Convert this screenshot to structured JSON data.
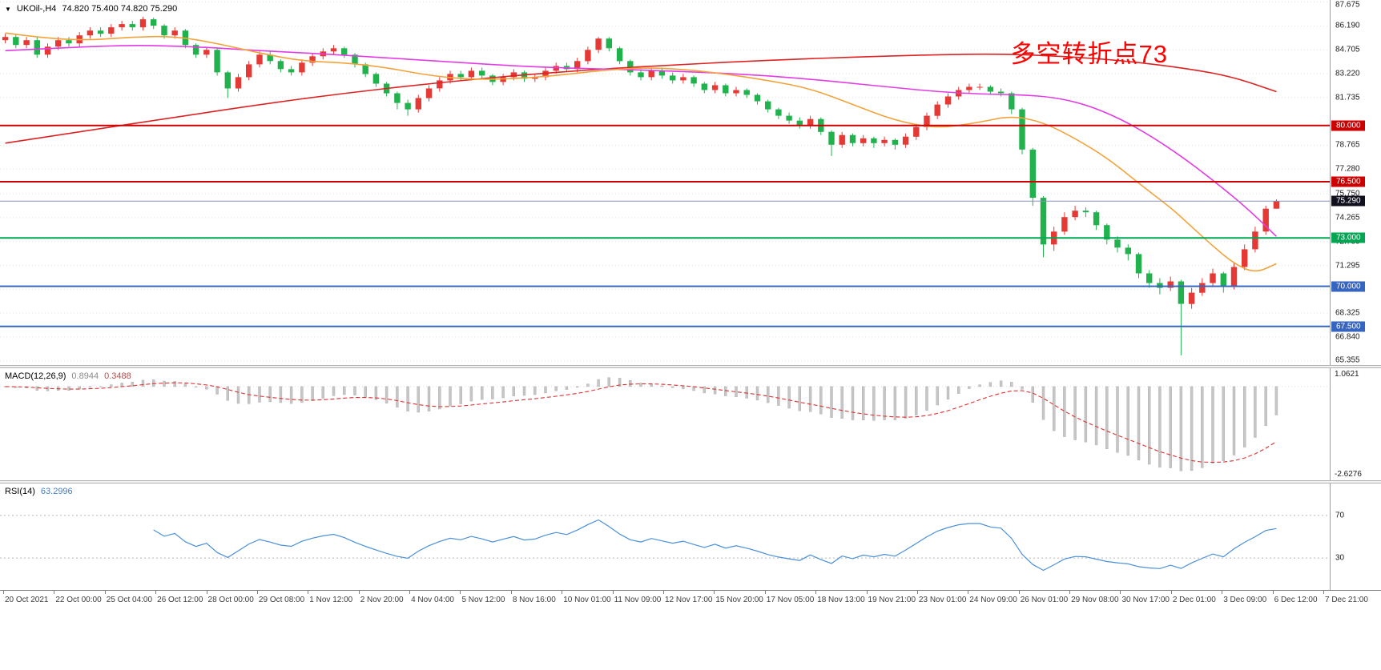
{
  "header": {
    "dropdown_icon": "▼",
    "symbol": "UKOil-,H4",
    "ohlc": "74.820 75.400 74.820 75.290"
  },
  "annotation": {
    "text": "多空转折点73",
    "color": "#ff0000"
  },
  "price_axis": {
    "ticks": [
      "87.675",
      "86.190",
      "84.705",
      "83.220",
      "81.735",
      "78.765",
      "77.280",
      "75.750",
      "74.265",
      "72.780",
      "71.295",
      "69.810",
      "68.325",
      "66.840",
      "65.355"
    ],
    "levels": [
      {
        "label": "80.000",
        "bg": "#cc0000"
      },
      {
        "label": "76.500",
        "bg": "#cc0000"
      },
      {
        "label": "75.290",
        "bg": "#10101e"
      },
      {
        "label": "73.000",
        "bg": "#00a651"
      },
      {
        "label": "70.000",
        "bg": "#3565c0"
      },
      {
        "label": "67.500",
        "bg": "#3565c0"
      }
    ]
  },
  "macd": {
    "label": "MACD(12,26,9)",
    "value_main": "0.8944",
    "value_signal": "0.3488",
    "axis_max": "1.0621",
    "axis_min": "-2.6276",
    "fast": 12,
    "slow": 26,
    "signal_period": 9,
    "histogram_color": "#c6c6c6",
    "signal_color": "#e03131"
  },
  "rsi": {
    "label": "RSI(14)",
    "value": "63.2996",
    "period": 14,
    "levels": [
      "70",
      "30"
    ],
    "line_color": "#4a90d9"
  },
  "time_axis": [
    "20 Oct 2021",
    "22 Oct 00:00",
    "25 Oct 04:00",
    "26 Oct 12:00",
    "28 Oct 00:00",
    "29 Oct 08:00",
    "1 Nov 12:00",
    "2 Nov 20:00",
    "4 Nov 04:00",
    "5 Nov 12:00",
    "8 Nov 16:00",
    "10 Nov 01:00",
    "11 Nov 09:00",
    "12 Nov 17:00",
    "15 Nov 20:00",
    "17 Nov 05:00",
    "18 Nov 13:00",
    "19 Nov 21:00",
    "23 Nov 01:00",
    "24 Nov 09:00",
    "26 Nov 01:00",
    "29 Nov 08:00",
    "30 Nov 17:00",
    "2 Dec 01:00",
    "3 Dec 09:00",
    "6 Dec 12:00",
    "7 Dec 21:00"
  ],
  "chart_data": {
    "type": "candlestick",
    "symbol": "UKOil-",
    "timeframe": "H4",
    "bull_color": "#e53935",
    "bear_color": "#21b24e",
    "y_range": [
      65.1,
      87.8
    ],
    "current_price": 75.29,
    "current_price_line_color": "#8896b8",
    "hlines": [
      {
        "price": 80.0,
        "color": "#cc0000"
      },
      {
        "price": 76.5,
        "color": "#cc0000"
      },
      {
        "price": 73.0,
        "color": "#00a651"
      },
      {
        "price": 70.0,
        "color": "#3565c0"
      },
      {
        "price": 67.5,
        "color": "#3565c0"
      }
    ],
    "candles": [
      [
        85.3,
        85.7,
        85.1,
        85.5
      ],
      [
        85.5,
        85.7,
        84.8,
        85.0
      ],
      [
        85.0,
        85.5,
        84.8,
        85.3
      ],
      [
        85.3,
        85.5,
        84.2,
        84.4
      ],
      [
        84.4,
        85.1,
        84.2,
        84.9
      ],
      [
        84.9,
        85.5,
        84.7,
        85.3
      ],
      [
        85.3,
        85.5,
        84.9,
        85.1
      ],
      [
        85.1,
        85.8,
        84.9,
        85.6
      ],
      [
        85.6,
        86.1,
        85.4,
        85.9
      ],
      [
        85.9,
        86.1,
        85.5,
        85.7
      ],
      [
        85.7,
        86.3,
        85.5,
        86.1
      ],
      [
        86.1,
        86.5,
        85.9,
        86.3
      ],
      [
        86.3,
        86.5,
        85.9,
        86.1
      ],
      [
        86.1,
        86.75,
        85.9,
        86.6
      ],
      [
        86.6,
        86.7,
        86.0,
        86.2
      ],
      [
        86.2,
        86.3,
        85.4,
        85.6
      ],
      [
        85.6,
        86.1,
        85.4,
        85.9
      ],
      [
        85.9,
        86.0,
        84.8,
        85.0
      ],
      [
        85.0,
        85.1,
        84.2,
        84.4
      ],
      [
        84.4,
        84.9,
        84.2,
        84.7
      ],
      [
        84.7,
        84.8,
        83.1,
        83.3
      ],
      [
        83.3,
        83.4,
        81.7,
        82.3
      ],
      [
        82.3,
        83.2,
        82.1,
        83.0
      ],
      [
        83.0,
        84.0,
        82.8,
        83.8
      ],
      [
        83.8,
        84.6,
        83.6,
        84.4
      ],
      [
        84.4,
        84.6,
        83.8,
        84.0
      ],
      [
        84.0,
        84.1,
        83.3,
        83.5
      ],
      [
        83.5,
        83.7,
        83.1,
        83.3
      ],
      [
        83.3,
        84.1,
        83.1,
        83.9
      ],
      [
        83.9,
        84.5,
        83.7,
        84.3
      ],
      [
        84.3,
        84.8,
        84.1,
        84.6
      ],
      [
        84.6,
        85.0,
        84.4,
        84.8
      ],
      [
        84.8,
        84.9,
        84.2,
        84.4
      ],
      [
        84.4,
        84.5,
        83.6,
        83.8
      ],
      [
        83.8,
        83.9,
        83.0,
        83.2
      ],
      [
        83.2,
        83.3,
        82.4,
        82.6
      ],
      [
        82.6,
        82.7,
        81.8,
        82.0
      ],
      [
        82.0,
        82.1,
        81.0,
        81.4
      ],
      [
        81.4,
        81.6,
        80.6,
        81.0
      ],
      [
        81.0,
        81.9,
        80.8,
        81.7
      ],
      [
        81.7,
        82.5,
        81.5,
        82.3
      ],
      [
        82.3,
        83.0,
        82.1,
        82.8
      ],
      [
        82.8,
        83.4,
        82.6,
        83.2
      ],
      [
        83.2,
        83.4,
        82.8,
        83.0
      ],
      [
        83.0,
        83.6,
        82.8,
        83.4
      ],
      [
        83.4,
        83.6,
        82.9,
        83.1
      ],
      [
        83.1,
        83.2,
        82.5,
        82.7
      ],
      [
        82.7,
        83.2,
        82.5,
        83.0
      ],
      [
        83.0,
        83.5,
        82.8,
        83.3
      ],
      [
        83.3,
        83.4,
        82.7,
        82.9
      ],
      [
        82.9,
        83.2,
        82.7,
        83.0
      ],
      [
        83.0,
        83.6,
        82.8,
        83.4
      ],
      [
        83.4,
        83.9,
        83.2,
        83.7
      ],
      [
        83.7,
        83.9,
        83.3,
        83.5
      ],
      [
        83.5,
        84.2,
        83.3,
        84.0
      ],
      [
        84.0,
        84.9,
        83.8,
        84.7
      ],
      [
        84.7,
        85.5,
        84.5,
        85.4
      ],
      [
        85.4,
        85.5,
        84.6,
        84.8
      ],
      [
        84.8,
        84.9,
        83.8,
        84.0
      ],
      [
        84.0,
        84.1,
        83.1,
        83.3
      ],
      [
        83.3,
        83.5,
        82.8,
        83.0
      ],
      [
        83.0,
        83.6,
        82.8,
        83.4
      ],
      [
        83.4,
        83.6,
        82.9,
        83.1
      ],
      [
        83.1,
        83.3,
        82.6,
        82.8
      ],
      [
        82.8,
        83.2,
        82.6,
        83.0
      ],
      [
        83.0,
        83.1,
        82.4,
        82.6
      ],
      [
        82.6,
        82.7,
        82.0,
        82.2
      ],
      [
        82.2,
        82.7,
        82.0,
        82.5
      ],
      [
        82.5,
        82.6,
        81.8,
        82.0
      ],
      [
        82.0,
        82.4,
        81.8,
        82.2
      ],
      [
        82.2,
        82.3,
        81.7,
        81.9
      ],
      [
        81.9,
        82.0,
        81.3,
        81.5
      ],
      [
        81.5,
        81.6,
        80.8,
        81.0
      ],
      [
        81.0,
        81.1,
        80.4,
        80.6
      ],
      [
        80.6,
        80.8,
        80.1,
        80.3
      ],
      [
        80.3,
        80.5,
        79.8,
        80.0
      ],
      [
        80.0,
        80.6,
        79.8,
        80.4
      ],
      [
        80.4,
        80.5,
        79.4,
        79.6
      ],
      [
        79.6,
        79.7,
        78.1,
        78.8
      ],
      [
        78.8,
        79.6,
        78.6,
        79.4
      ],
      [
        79.4,
        79.5,
        78.7,
        78.9
      ],
      [
        78.9,
        79.4,
        78.7,
        79.2
      ],
      [
        79.2,
        79.3,
        78.6,
        78.9
      ],
      [
        78.9,
        79.3,
        78.7,
        79.1
      ],
      [
        79.1,
        79.2,
        78.5,
        78.8
      ],
      [
        78.8,
        79.5,
        78.6,
        79.3
      ],
      [
        79.3,
        80.1,
        79.1,
        79.9
      ],
      [
        79.9,
        80.8,
        79.7,
        80.6
      ],
      [
        80.6,
        81.5,
        80.4,
        81.3
      ],
      [
        81.3,
        82.0,
        81.1,
        81.8
      ],
      [
        81.8,
        82.4,
        81.6,
        82.2
      ],
      [
        82.2,
        82.6,
        82.0,
        82.4
      ],
      [
        82.4,
        82.6,
        82.2,
        82.4
      ],
      [
        82.4,
        82.5,
        81.9,
        82.1
      ],
      [
        82.1,
        82.3,
        81.8,
        82.0
      ],
      [
        82.0,
        82.1,
        80.7,
        81.0
      ],
      [
        81.0,
        81.1,
        78.2,
        78.5
      ],
      [
        78.5,
        78.6,
        75.0,
        75.5
      ],
      [
        75.5,
        75.6,
        71.8,
        72.6
      ],
      [
        72.6,
        73.7,
        72.2,
        73.4
      ],
      [
        73.4,
        74.6,
        73.2,
        74.3
      ],
      [
        74.3,
        75.0,
        74.1,
        74.7
      ],
      [
        74.7,
        74.9,
        74.3,
        74.6
      ],
      [
        74.6,
        74.7,
        73.5,
        73.8
      ],
      [
        73.8,
        73.9,
        72.6,
        72.9
      ],
      [
        72.9,
        73.1,
        72.1,
        72.4
      ],
      [
        72.4,
        72.6,
        71.6,
        72.0
      ],
      [
        72.0,
        72.1,
        70.5,
        70.8
      ],
      [
        70.8,
        71.0,
        69.9,
        70.2
      ],
      [
        70.2,
        70.5,
        69.5,
        69.9
      ],
      [
        69.9,
        70.6,
        69.7,
        70.3
      ],
      [
        70.3,
        70.4,
        65.7,
        68.9
      ],
      [
        68.9,
        69.9,
        68.6,
        69.6
      ],
      [
        69.6,
        70.5,
        69.4,
        70.2
      ],
      [
        70.2,
        71.1,
        70.0,
        70.8
      ],
      [
        70.8,
        70.9,
        69.6,
        70.0
      ],
      [
        70.0,
        71.5,
        69.8,
        71.2
      ],
      [
        71.2,
        72.6,
        71.0,
        72.3
      ],
      [
        72.3,
        73.7,
        72.1,
        73.4
      ],
      [
        73.4,
        75.0,
        73.2,
        74.82
      ],
      [
        74.82,
        75.4,
        74.82,
        75.29
      ]
    ],
    "ma_lines": [
      {
        "name": "ma-red",
        "color": "#dd2222",
        "points": [
          [
            0,
            78.9
          ],
          [
            8,
            79.7
          ],
          [
            16,
            80.5
          ],
          [
            24,
            81.3
          ],
          [
            32,
            82.0
          ],
          [
            40,
            82.6
          ],
          [
            48,
            83.1
          ],
          [
            56,
            83.5
          ],
          [
            64,
            83.8
          ],
          [
            72,
            84.05
          ],
          [
            80,
            84.25
          ],
          [
            88,
            84.4
          ],
          [
            94,
            84.45
          ],
          [
            100,
            84.3
          ],
          [
            106,
            84.0
          ],
          [
            112,
            83.5
          ],
          [
            116,
            83.0
          ],
          [
            120,
            82.1
          ]
        ]
      },
      {
        "name": "ma-magenta",
        "color": "#e23ce2",
        "points": [
          [
            0,
            84.65
          ],
          [
            6,
            84.85
          ],
          [
            12,
            85.0
          ],
          [
            18,
            84.9
          ],
          [
            24,
            84.65
          ],
          [
            30,
            84.45
          ],
          [
            36,
            84.2
          ],
          [
            42,
            83.95
          ],
          [
            48,
            83.7
          ],
          [
            54,
            83.55
          ],
          [
            60,
            83.45
          ],
          [
            66,
            83.3
          ],
          [
            72,
            83.1
          ],
          [
            78,
            82.75
          ],
          [
            84,
            82.35
          ],
          [
            88,
            82.1
          ],
          [
            92,
            81.95
          ],
          [
            96,
            81.9
          ],
          [
            99,
            81.75
          ],
          [
            102,
            81.3
          ],
          [
            105,
            80.5
          ],
          [
            108,
            79.4
          ],
          [
            111,
            78.1
          ],
          [
            114,
            76.6
          ],
          [
            117,
            75.0
          ],
          [
            120,
            73.1
          ]
        ]
      },
      {
        "name": "ma-orange",
        "color": "#f2a33c",
        "points": [
          [
            0,
            85.75
          ],
          [
            4,
            85.4
          ],
          [
            8,
            85.3
          ],
          [
            12,
            85.5
          ],
          [
            16,
            85.55
          ],
          [
            20,
            85.1
          ],
          [
            24,
            84.5
          ],
          [
            28,
            84.0
          ],
          [
            32,
            83.9
          ],
          [
            36,
            83.6
          ],
          [
            40,
            83.1
          ],
          [
            44,
            82.85
          ],
          [
            48,
            82.9
          ],
          [
            52,
            83.1
          ],
          [
            56,
            83.4
          ],
          [
            60,
            83.6
          ],
          [
            64,
            83.5
          ],
          [
            68,
            83.2
          ],
          [
            72,
            82.8
          ],
          [
            76,
            82.3
          ],
          [
            80,
            81.3
          ],
          [
            84,
            80.3
          ],
          [
            88,
            79.8
          ],
          [
            92,
            80.2
          ],
          [
            95,
            80.6
          ],
          [
            98,
            80.2
          ],
          [
            101,
            79.2
          ],
          [
            104,
            78.0
          ],
          [
            107,
            76.4
          ],
          [
            110,
            74.9
          ],
          [
            112,
            73.7
          ],
          [
            114,
            72.5
          ],
          [
            116,
            71.4
          ],
          [
            118,
            70.8
          ],
          [
            120,
            71.4
          ]
        ]
      }
    ]
  }
}
